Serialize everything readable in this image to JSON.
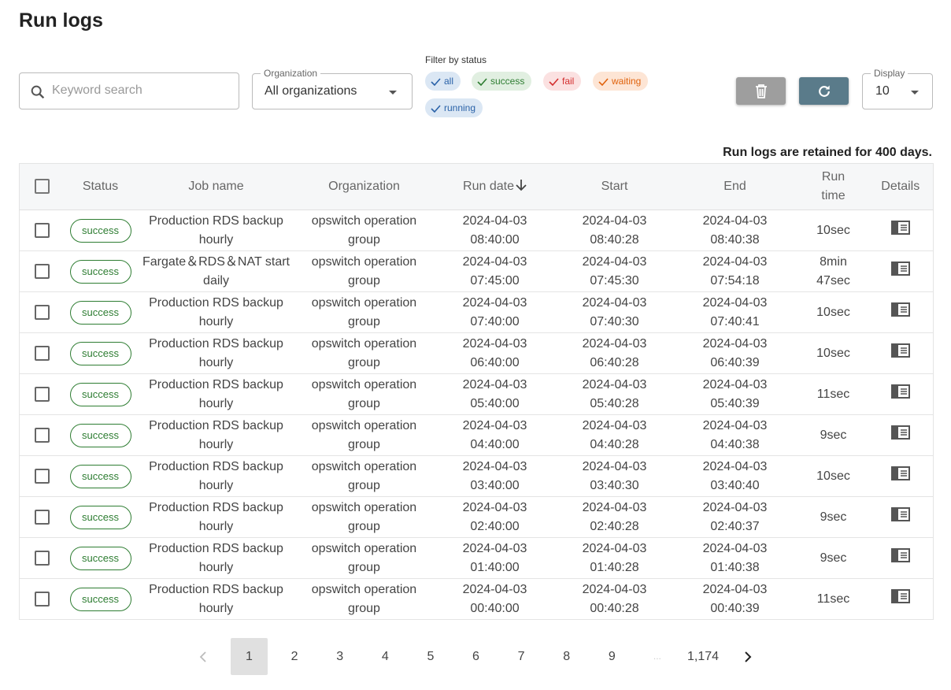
{
  "header": {
    "title": "Run logs"
  },
  "search": {
    "placeholder": "Keyword search"
  },
  "organization": {
    "label": "Organization",
    "value": "All organizations"
  },
  "filter": {
    "label": "Filter by status",
    "chips": [
      "all",
      "success",
      "fail",
      "waiting",
      "running"
    ]
  },
  "display": {
    "label": "Display",
    "value": "10"
  },
  "retention_note": "Run logs are retained for 400 days.",
  "table": {
    "columns": [
      "Status",
      "Job name",
      "Organization",
      "Run date",
      "Start",
      "End",
      "Run time",
      "Details"
    ],
    "rows": [
      [
        "success",
        "Production RDS backup hourly",
        "opswitch operation group",
        "2024-04-03 08:40:00",
        "2024-04-03 08:40:28",
        "2024-04-03 08:40:38",
        "10sec"
      ],
      [
        "success",
        "Fargate＆RDS＆NAT start daily",
        "opswitch operation group",
        "2024-04-03 07:45:00",
        "2024-04-03 07:45:30",
        "2024-04-03 07:54:18",
        "8min 47sec"
      ],
      [
        "success",
        "Production RDS backup hourly",
        "opswitch operation group",
        "2024-04-03 07:40:00",
        "2024-04-03 07:40:30",
        "2024-04-03 07:40:41",
        "10sec"
      ],
      [
        "success",
        "Production RDS backup hourly",
        "opswitch operation group",
        "2024-04-03 06:40:00",
        "2024-04-03 06:40:28",
        "2024-04-03 06:40:39",
        "10sec"
      ],
      [
        "success",
        "Production RDS backup hourly",
        "opswitch operation group",
        "2024-04-03 05:40:00",
        "2024-04-03 05:40:28",
        "2024-04-03 05:40:39",
        "11sec"
      ],
      [
        "success",
        "Production RDS backup hourly",
        "opswitch operation group",
        "2024-04-03 04:40:00",
        "2024-04-03 04:40:28",
        "2024-04-03 04:40:38",
        "9sec"
      ],
      [
        "success",
        "Production RDS backup hourly",
        "opswitch operation group",
        "2024-04-03 03:40:00",
        "2024-04-03 03:40:30",
        "2024-04-03 03:40:40",
        "10sec"
      ],
      [
        "success",
        "Production RDS backup hourly",
        "opswitch operation group",
        "2024-04-03 02:40:00",
        "2024-04-03 02:40:28",
        "2024-04-03 02:40:37",
        "9sec"
      ],
      [
        "success",
        "Production RDS backup hourly",
        "opswitch operation group",
        "2024-04-03 01:40:00",
        "2024-04-03 01:40:28",
        "2024-04-03 01:40:38",
        "9sec"
      ],
      [
        "success",
        "Production RDS backup hourly",
        "opswitch operation group",
        "2024-04-03 00:40:00",
        "2024-04-03 00:40:28",
        "2024-04-03 00:40:39",
        "11sec"
      ]
    ]
  },
  "pagination": {
    "pages": [
      "1",
      "2",
      "3",
      "4",
      "5",
      "6",
      "7",
      "8",
      "9",
      "...",
      "1,174"
    ]
  }
}
